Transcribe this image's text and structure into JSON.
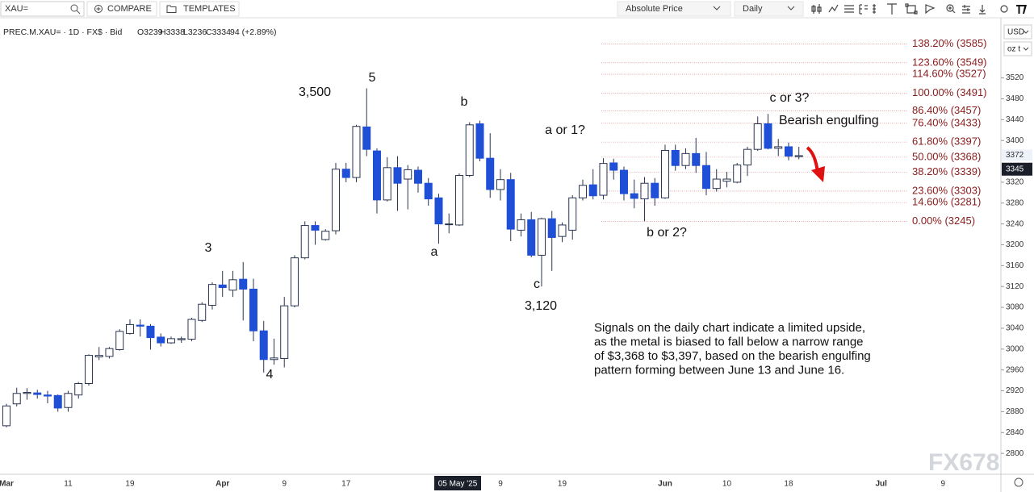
{
  "toolbar": {
    "search": "XAU=",
    "compare": "COMPARE",
    "templates": "TEMPLATES",
    "scale_mode": "Absolute Price",
    "interval": "Daily"
  },
  "chart_data": {
    "type": "candlestick",
    "info": {
      "symbol": "PREC.M.XAU= · 1D · FX$ · Bid",
      "open": "O3239",
      "high": "H3338",
      "low": "L3236",
      "close": "C3334",
      "change": "94 (+2.89%)"
    },
    "currency": "USD",
    "unit": "oz t",
    "categories": [
      "Mar",
      null,
      null,
      null,
      null,
      null,
      "11",
      null,
      null,
      null,
      null,
      null,
      "19",
      null,
      null,
      null,
      null,
      null,
      null,
      null,
      null,
      "Apr",
      null,
      null,
      null,
      null,
      null,
      "9",
      null,
      null,
      null,
      null,
      null,
      "17",
      null,
      null,
      null,
      null,
      null,
      null,
      null,
      null,
      null,
      null,
      null,
      null,
      null,
      null,
      "9",
      null,
      null,
      null,
      null,
      null,
      "19",
      null,
      null,
      null,
      null,
      null,
      null,
      null,
      null,
      null,
      "Jun",
      null,
      null,
      null,
      null,
      null,
      "10",
      null,
      null,
      null,
      null,
      null,
      "18",
      null,
      null,
      null,
      null,
      null,
      null,
      null,
      null,
      "Jul",
      null,
      null,
      null,
      null,
      null,
      "9",
      null,
      null,
      null,
      null
    ],
    "crosshair_date": "05 May '25",
    "open": [
      2853,
      2895,
      2915,
      2916,
      2912,
      2911,
      2888,
      2912,
      2934,
      2985,
      2986,
      2999,
      3030,
      3046,
      3044,
      3023,
      3012,
      3018,
      3019,
      3055,
      3084,
      3123,
      3113,
      3134,
      3115,
      3035,
      2980,
      2982,
      3083,
      3175,
      3237,
      3210,
      3227,
      3345,
      3329,
      3426,
      3380,
      3286,
      3348,
      3326,
      3343,
      3318,
      3290,
      3240,
      3238,
      3333,
      3432,
      3366,
      3306,
      3325,
      3228,
      3248,
      3180,
      3250,
      3216,
      3228,
      3290,
      3315,
      3295,
      3357,
      3343,
      3298,
      3288,
      3318,
      3290,
      3381,
      3352,
      3375,
      3352,
      3308,
      3322,
      3320,
      3353,
      3383,
      3432,
      3385,
      3388,
      3369,
      null,
      null,
      null,
      null,
      null,
      null,
      null,
      null,
      null,
      null,
      null,
      null,
      null,
      null,
      null,
      null,
      null,
      null
    ],
    "high": [
      2895,
      2926,
      2925,
      2922,
      2920,
      2913,
      2920,
      2937,
      2990,
      3004,
      3004,
      3038,
      3057,
      3057,
      3048,
      3030,
      3024,
      3024,
      3060,
      3090,
      3128,
      3150,
      3150,
      3167,
      3135,
      3054,
      3020,
      3100,
      3180,
      3245,
      3245,
      3230,
      3357,
      3357,
      3430,
      3500,
      3385,
      3368,
      3370,
      3353,
      3350,
      3328,
      3298,
      3260,
      3337,
      3435,
      3438,
      3414,
      3345,
      3338,
      3260,
      3263,
      3252,
      3265,
      3243,
      3295,
      3325,
      3345,
      3366,
      3365,
      3350,
      3325,
      3330,
      3328,
      3392,
      3392,
      3385,
      3405,
      3378,
      3345,
      3340,
      3357,
      3388,
      3446,
      3451,
      3403,
      3396,
      3388,
      null,
      null,
      null,
      null,
      null,
      null,
      null,
      null,
      null,
      null,
      null,
      null,
      null,
      null,
      null,
      null,
      null,
      null
    ],
    "low": [
      2850,
      2890,
      2903,
      2905,
      2896,
      2880,
      2880,
      2905,
      2930,
      2979,
      2982,
      2997,
      3028,
      3024,
      2999,
      3005,
      3010,
      3012,
      3015,
      3052,
      3076,
      3100,
      3100,
      3055,
      3015,
      2955,
      2970,
      2965,
      3080,
      3172,
      3200,
      3208,
      3220,
      3320,
      3320,
      3370,
      3260,
      3283,
      3265,
      3268,
      3300,
      3275,
      3202,
      3222,
      3236,
      3330,
      3360,
      3290,
      3285,
      3207,
      3216,
      3176,
      3120,
      3150,
      3205,
      3210,
      3285,
      3287,
      3287,
      3325,
      3285,
      3270,
      3245,
      3275,
      3288,
      3342,
      3345,
      3338,
      3295,
      3302,
      3310,
      3318,
      3332,
      3380,
      3383,
      3370,
      3362,
      3364,
      null,
      null,
      null,
      null,
      null,
      null,
      null,
      null,
      null,
      null,
      null,
      null,
      null,
      null,
      null,
      null,
      null,
      null
    ],
    "close": [
      2891,
      2915,
      2917,
      2913,
      2910,
      2887,
      2915,
      2934,
      2988,
      2988,
      3001,
      3034,
      3047,
      3044,
      3022,
      3012,
      3020,
      3020,
      3057,
      3086,
      3124,
      3118,
      3133,
      3115,
      3035,
      2980,
      2983,
      3083,
      3175,
      3237,
      3228,
      3226,
      3345,
      3329,
      3427,
      3383,
      3286,
      3348,
      3318,
      3344,
      3318,
      3288,
      3240,
      3240,
      3333,
      3430,
      3366,
      3306,
      3325,
      3230,
      3248,
      3180,
      3250,
      3214,
      3238,
      3290,
      3314,
      3294,
      3356,
      3343,
      3298,
      3289,
      3318,
      3290,
      3381,
      3352,
      3375,
      3352,
      3308,
      3326,
      3326,
      3353,
      3383,
      3432,
      3385,
      3388,
      3370,
      3371,
      null,
      null,
      null,
      null,
      null,
      null,
      null,
      null,
      null,
      null,
      null,
      null,
      null,
      null,
      null,
      null,
      null,
      null
    ],
    "up_color": "#ffffff",
    "down_color": "#1f4fd6",
    "ylim": [
      2760,
      3623
    ],
    "yticks": [
      2800,
      2840,
      2880,
      2920,
      2960,
      3000,
      3040,
      3080,
      3120,
      3160,
      3200,
      3240,
      3280,
      3320,
      3400,
      3440,
      3480,
      3520
    ],
    "price_marker": 3372,
    "last_price": 3345,
    "fib_levels": [
      {
        "value": 3585,
        "label": "138.20% (3585)"
      },
      {
        "value": 3549,
        "label": "123.60% (3549)"
      },
      {
        "value": 3527,
        "label": "114.60% (3527)"
      },
      {
        "value": 3491,
        "label": "100.00% (3491)"
      },
      {
        "value": 3457,
        "label": "86.40% (3457)"
      },
      {
        "value": 3433,
        "label": "76.40% (3433)"
      },
      {
        "value": 3397,
        "label": "61.80% (3397)"
      },
      {
        "value": 3368,
        "label": "50.00% (3368)"
      },
      {
        "value": 3339,
        "label": "38.20% (3339)"
      },
      {
        "value": 3303,
        "label": "23.60% (3303)"
      },
      {
        "value": 3281,
        "label": "14.60% (3281)"
      },
      {
        "value": 3245,
        "label": "0.00% (3245)"
      }
    ],
    "fib_color": "#c0504d",
    "annotations": [
      "5",
      "3,500",
      "b",
      "a or 1?",
      "c or 3?",
      "Bearish engulfing",
      "3",
      "a",
      "c",
      "3,120",
      "4",
      "b or 2?"
    ],
    "note": [
      "Signals on the daily chart indicate a limited upside,",
      "as the metal is biased to fall below a narrow range",
      "of $3,368 to $3,397, based on the bearish engulfing",
      "pattern forming between June 13 and June 16."
    ],
    "watermark": "FX678"
  }
}
